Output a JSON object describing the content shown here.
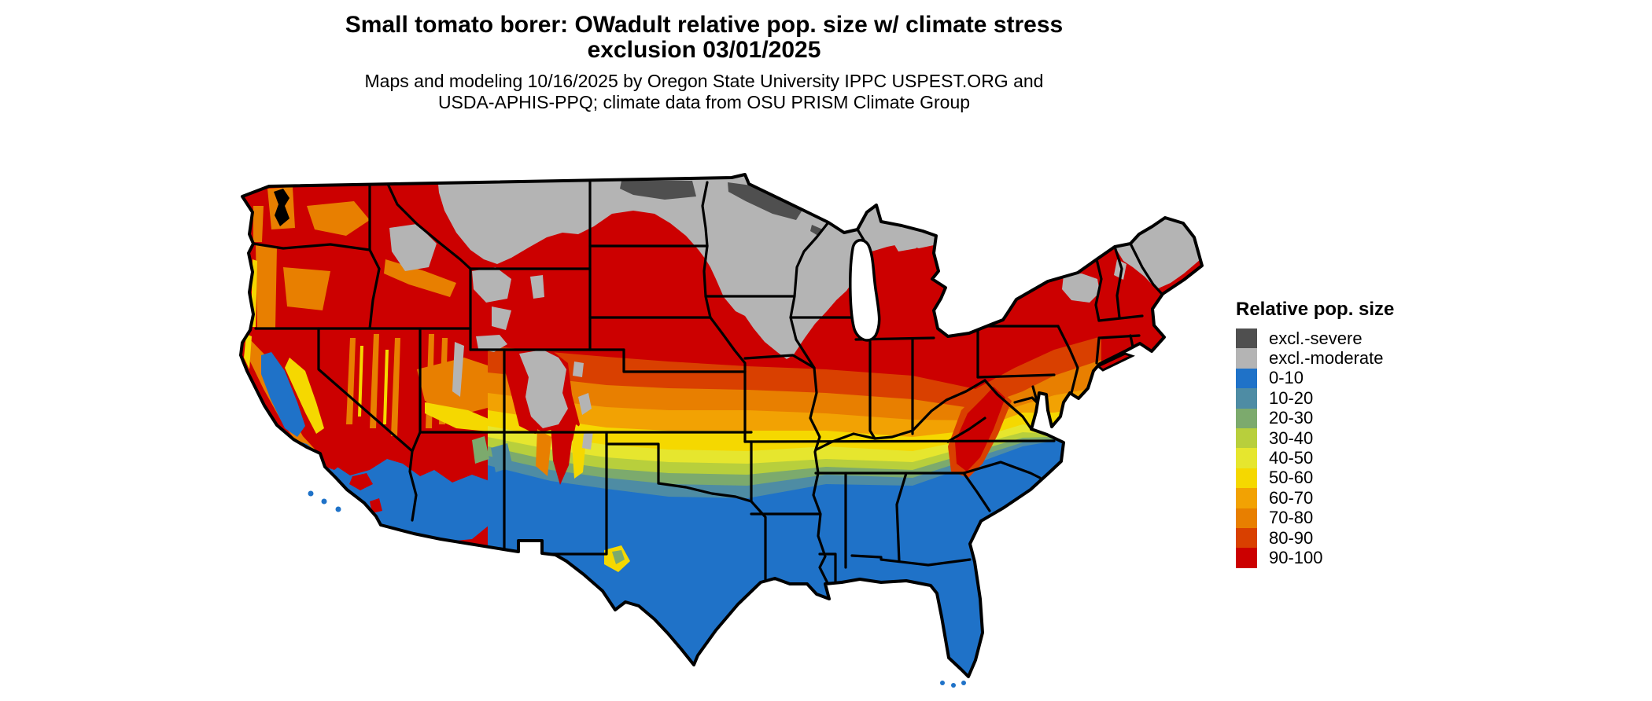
{
  "title": {
    "line1": "Small tomato borer: OWadult relative pop. size w/ climate stress",
    "line2": "exclusion 03/01/2025"
  },
  "subtitle": {
    "line1": "Maps and modeling 10/16/2025 by Oregon State University IPPC USPEST.ORG and",
    "line2": "USDA-APHIS-PPQ; climate data from OSU PRISM Climate Group"
  },
  "legend": {
    "title": "Relative pop. size",
    "entries": [
      {
        "key": "severe",
        "label": "excl.-severe",
        "color": "#4f4f4f"
      },
      {
        "key": "moderate",
        "label": "excl.-moderate",
        "color": "#b4b4b4"
      },
      {
        "key": "c0",
        "label": "0-10",
        "color": "#1f72c8"
      },
      {
        "key": "c10",
        "label": "10-20",
        "color": "#4e8ca4"
      },
      {
        "key": "c20",
        "label": "20-30",
        "color": "#7caa6d"
      },
      {
        "key": "c30",
        "label": "30-40",
        "color": "#b8cf3c"
      },
      {
        "key": "c40",
        "label": "40-50",
        "color": "#e6e62e"
      },
      {
        "key": "c50",
        "label": "50-60",
        "color": "#f5d800"
      },
      {
        "key": "c60",
        "label": "60-70",
        "color": "#f2a203"
      },
      {
        "key": "c70",
        "label": "70-80",
        "color": "#e87f00"
      },
      {
        "key": "c80",
        "label": "80-90",
        "color": "#d94000"
      },
      {
        "key": "c90",
        "label": "90-100",
        "color": "#cc0000"
      }
    ]
  },
  "map": {
    "area": "Contiguous United States",
    "kind": "raster choropleth of relative population size with state boundaries",
    "boundary_color": "#000000",
    "water_color": "#ffffff",
    "regions": {
      "pacific_northwest_interior_west": "mostly 90-100 with excl.-moderate mountain areas",
      "north_central_upper_midwest": "excl.-moderate with excl.-severe patches along the Canadian border",
      "corn_belt_northeast": "90-100",
      "central_plains_mid_south": "banded transition 80-90 down to 20-30",
      "gulf_coast_south_texas_florida_southwest_deserts": "0-10",
      "california_central_valley": "0-10",
      "northern_new_england_adirondacks": "excl.-moderate"
    }
  }
}
